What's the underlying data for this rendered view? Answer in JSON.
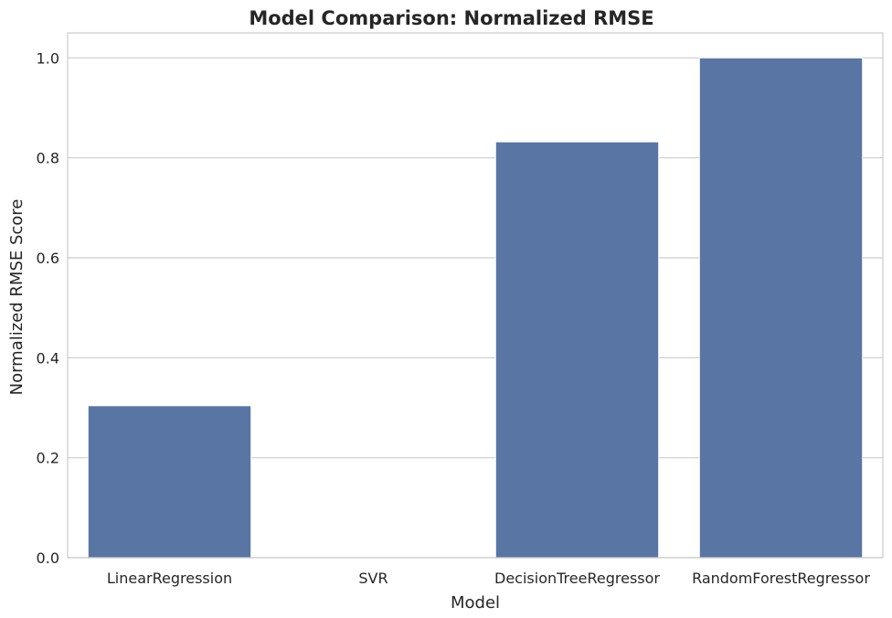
{
  "chart_data": {
    "type": "bar",
    "title": "Model Comparison: Normalized RMSE",
    "xlabel": "Model",
    "ylabel": "Normalized RMSE Score",
    "categories": [
      "LinearRegression",
      "SVR",
      "DecisionTreeRegressor",
      "RandomForestRegressor"
    ],
    "values": [
      0.304,
      0.0,
      0.832,
      1.0
    ],
    "ylim": [
      0,
      1.05
    ],
    "yticks": [
      "0.0",
      "0.2",
      "0.4",
      "0.6",
      "0.8",
      "1.0"
    ],
    "grid": true,
    "bar_color": "#5875a4"
  }
}
